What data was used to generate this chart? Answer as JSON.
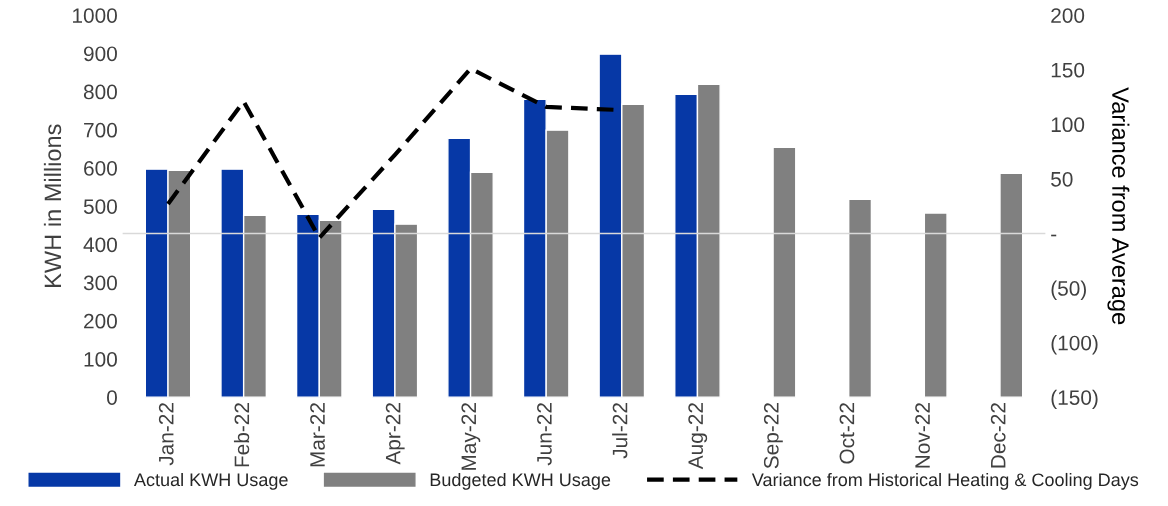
{
  "chart_data": {
    "type": "bar",
    "categories": [
      "Jan-22",
      "Feb-22",
      "Mar-22",
      "Apr-22",
      "May-22",
      "Jun-22",
      "Jul-22",
      "Aug-22",
      "Sep-22",
      "Oct-22",
      "Nov-22",
      "Dec-22"
    ],
    "series": [
      {
        "name": "Actual KWH Usage",
        "color": "#0638a6",
        "values": [
          597,
          597,
          479,
          492,
          678,
          780,
          898,
          793,
          null,
          null,
          null,
          null
        ]
      },
      {
        "name": "Budgeted KWH Usage",
        "color": "#808080",
        "values": [
          594,
          476,
          463,
          453,
          589,
          699,
          767,
          819,
          654,
          518,
          482,
          586
        ]
      },
      {
        "name": "Variance from Historical Heating & Cooling Days",
        "type": "line",
        "axis": "y2",
        "color": "#000000",
        "line_style": "dashed",
        "values": [
          27,
          121,
          -4,
          72,
          151,
          116,
          113,
          null,
          null,
          null,
          null,
          null
        ]
      }
    ],
    "ylabel": "KWH in Millions",
    "y2label": "Variance from Average",
    "ylim": [
      0,
      1000
    ],
    "yticks": [
      0,
      100,
      200,
      300,
      400,
      500,
      600,
      700,
      800,
      900,
      1000
    ],
    "y2lim": [
      -150,
      200
    ],
    "y2ticks": [
      {
        "value": -150,
        "label": "(150)"
      },
      {
        "value": -100,
        "label": "(100)"
      },
      {
        "value": -50,
        "label": "(50)"
      },
      {
        "value": 0,
        "label": "-"
      },
      50,
      100,
      150,
      200
    ],
    "ref_lines": [
      {
        "axis": "y2",
        "value": 0,
        "color": "#d9d9d9"
      }
    ],
    "legend": "bottom"
  }
}
